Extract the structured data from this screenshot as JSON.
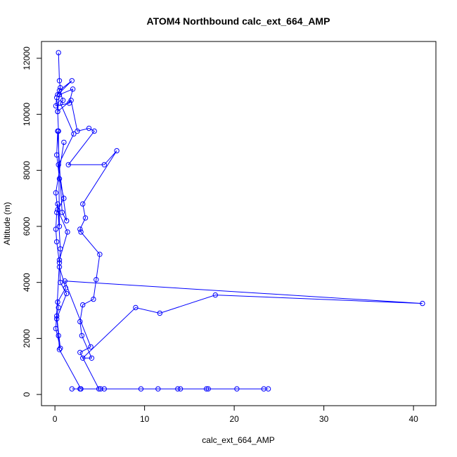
{
  "chart_data": {
    "type": "line",
    "title": "ATOM4 Northbound calc_ext_664_AMP",
    "xlabel": "calc_ext_664_AMP",
    "ylabel": "Altitude (m)",
    "xlim": [
      -1.5,
      42.5
    ],
    "ylim": [
      -400,
      12600
    ],
    "xticks": [
      0,
      10,
      20,
      30,
      40
    ],
    "yticks": [
      0,
      2000,
      4000,
      6000,
      8000,
      10000,
      12000
    ],
    "xtick_labels": [
      "0",
      "10",
      "20",
      "30",
      "40"
    ],
    "ytick_labels": [
      "0",
      "2000",
      "4000",
      "6000",
      "8000",
      "10000",
      "12000"
    ],
    "grid": false,
    "series": [
      {
        "color": "#0000ff",
        "marker": "open-circle",
        "x": [
          0.4,
          0.5,
          0.6,
          0.3,
          1.9,
          0.5,
          0.9,
          0.6,
          2.1,
          0.4,
          1.3,
          0.8,
          0.3,
          0.2,
          0.5,
          1.0,
          0.2,
          0.1,
          0.2,
          0.5,
          0.1,
          0.6,
          0.2,
          0.4,
          0.3,
          1.2,
          0.5,
          0.6,
          0.3,
          0.5,
          0.4,
          0.3,
          0.2,
          0.1,
          1.6,
          2.0,
          0.5,
          0.3,
          1.8,
          2.5,
          3.8,
          4.4,
          1.5,
          5.5,
          6.9,
          3.1,
          3.4,
          2.8,
          2.9,
          5.0,
          4.6,
          4.3,
          3.1,
          2.8,
          3.0,
          4.1,
          3.1,
          9.0,
          11.7,
          17.9,
          41.0,
          1.1,
          4.0,
          2.8,
          4.9,
          5.1,
          5.5,
          9.6,
          11.5,
          13.7,
          14.0,
          16.9,
          17.1,
          20.3,
          23.3,
          23.8,
          1.9,
          2.8,
          2.9,
          0.5,
          0.4,
          0.2,
          1.3,
          0.6,
          0.5,
          1.4,
          0.3,
          0.1,
          1.0
        ],
        "y": [
          12200,
          11200,
          10950,
          10700,
          11200,
          10850,
          10500,
          10400,
          9300,
          8200,
          6200,
          6500,
          9400,
          8550,
          7700,
          7000,
          6500,
          5900,
          5450,
          4700,
          2350,
          1650,
          2800,
          3100,
          3300,
          3800,
          4550,
          5200,
          6800,
          6000,
          9400,
          10100,
          10600,
          10300,
          10400,
          10900,
          10700,
          10100,
          10500,
          9400,
          9500,
          9400,
          8200,
          8200,
          8700,
          6800,
          6300,
          5900,
          5800,
          5000,
          4100,
          3400,
          3200,
          2600,
          2100,
          1300,
          1300,
          3100,
          2900,
          3550,
          3250,
          4050,
          1700,
          1500,
          200,
          200,
          200,
          200,
          200,
          200,
          200,
          200,
          200,
          200,
          200,
          200,
          200,
          200,
          200,
          1600,
          2100,
          2700,
          3600,
          4000,
          4800,
          5800,
          6600,
          7200,
          9000
        ]
      }
    ]
  }
}
